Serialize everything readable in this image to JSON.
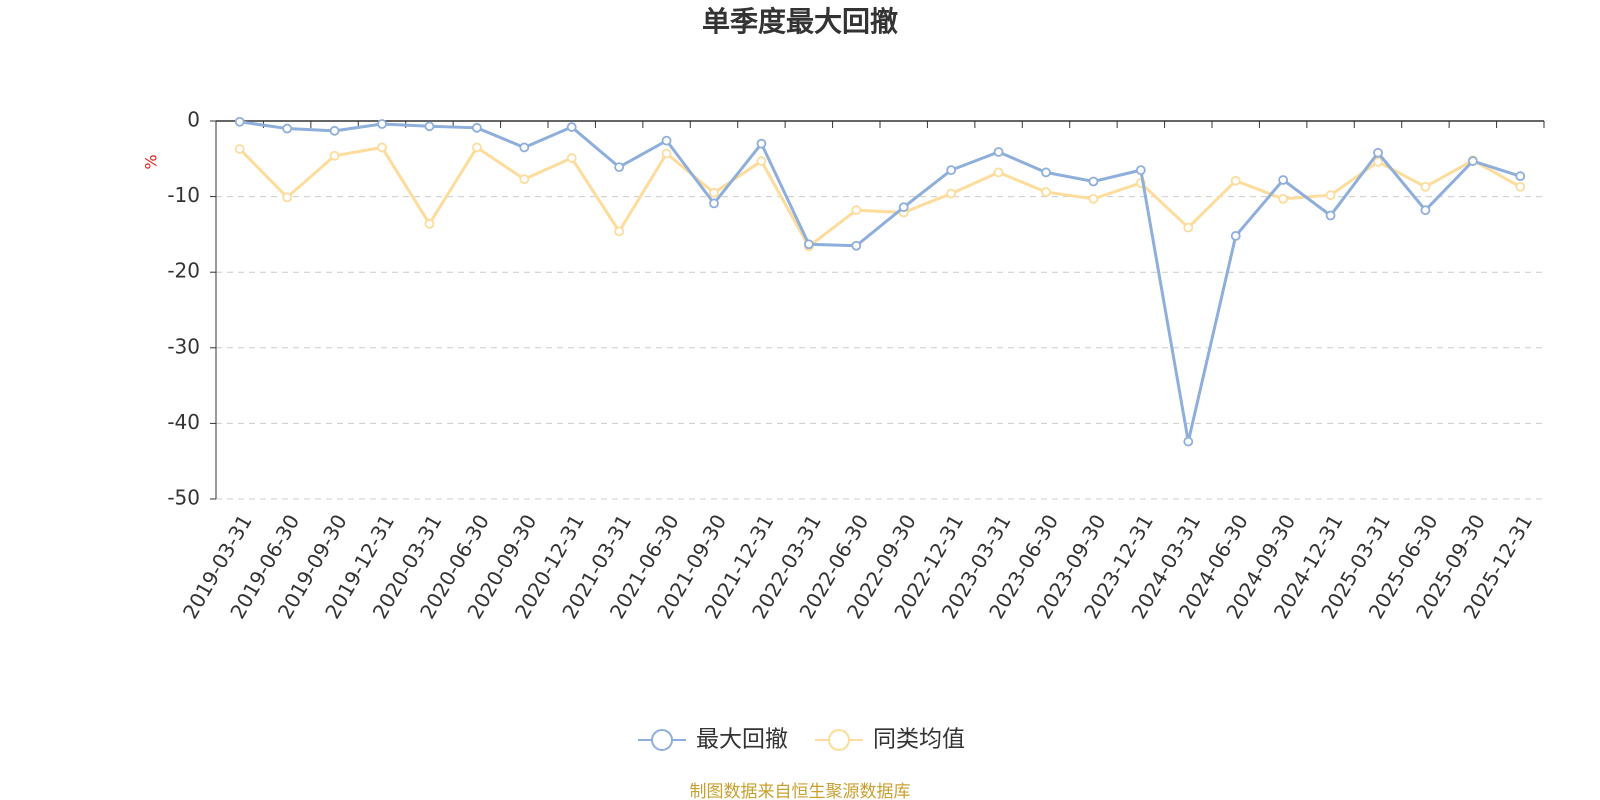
{
  "chart_data": {
    "type": "line",
    "title": "单季度最大回撤",
    "y_label": "%",
    "source": "制图数据来自恒生聚源数据库",
    "categories": [
      "2019-03-31",
      "2019-06-30",
      "2019-09-30",
      "2019-12-31",
      "2020-03-31",
      "2020-06-30",
      "2020-09-30",
      "2020-12-31",
      "2021-03-31",
      "2021-06-30",
      "2021-09-30",
      "2021-12-31",
      "2022-03-31",
      "2022-06-30",
      "2022-09-30",
      "2022-12-31",
      "2023-03-31",
      "2023-06-30",
      "2023-09-30",
      "2023-12-31",
      "2024-03-31",
      "2024-06-30",
      "2024-09-30",
      "2024-12-31",
      "2025-03-31",
      "2025-06-30",
      "2025-09-30",
      "2025-12-31"
    ],
    "series": [
      {
        "name": "最大回撤",
        "color": "#8eaedb",
        "values": [
          -0.1,
          -1.0,
          -1.3,
          -0.4,
          -0.7,
          -0.9,
          -3.5,
          -0.8,
          -6.1,
          -2.6,
          -10.9,
          -3.0,
          -16.3,
          -16.5,
          -11.4,
          -6.5,
          -4.1,
          -6.8,
          -8.0,
          -6.5,
          -42.4,
          -15.2,
          -7.8,
          -12.5,
          -4.2,
          -11.8,
          -5.3,
          -7.3
        ]
      },
      {
        "name": "同类均值",
        "color": "#fddc9c",
        "values": [
          -3.7,
          -10.1,
          -4.6,
          -3.5,
          -13.6,
          -3.5,
          -7.7,
          -4.9,
          -14.6,
          -4.3,
          -9.5,
          -5.3,
          -16.6,
          -11.8,
          -12.1,
          -9.6,
          -6.8,
          -9.4,
          -10.3,
          -8.2,
          -14.1,
          -7.9,
          -10.3,
          -9.8,
          -5.4,
          -8.7,
          -5.2,
          -8.7
        ]
      }
    ],
    "ylim": [
      -50,
      0
    ],
    "yticks": [
      -50,
      -40,
      -30,
      -20,
      -10,
      0
    ],
    "grid": true
  }
}
